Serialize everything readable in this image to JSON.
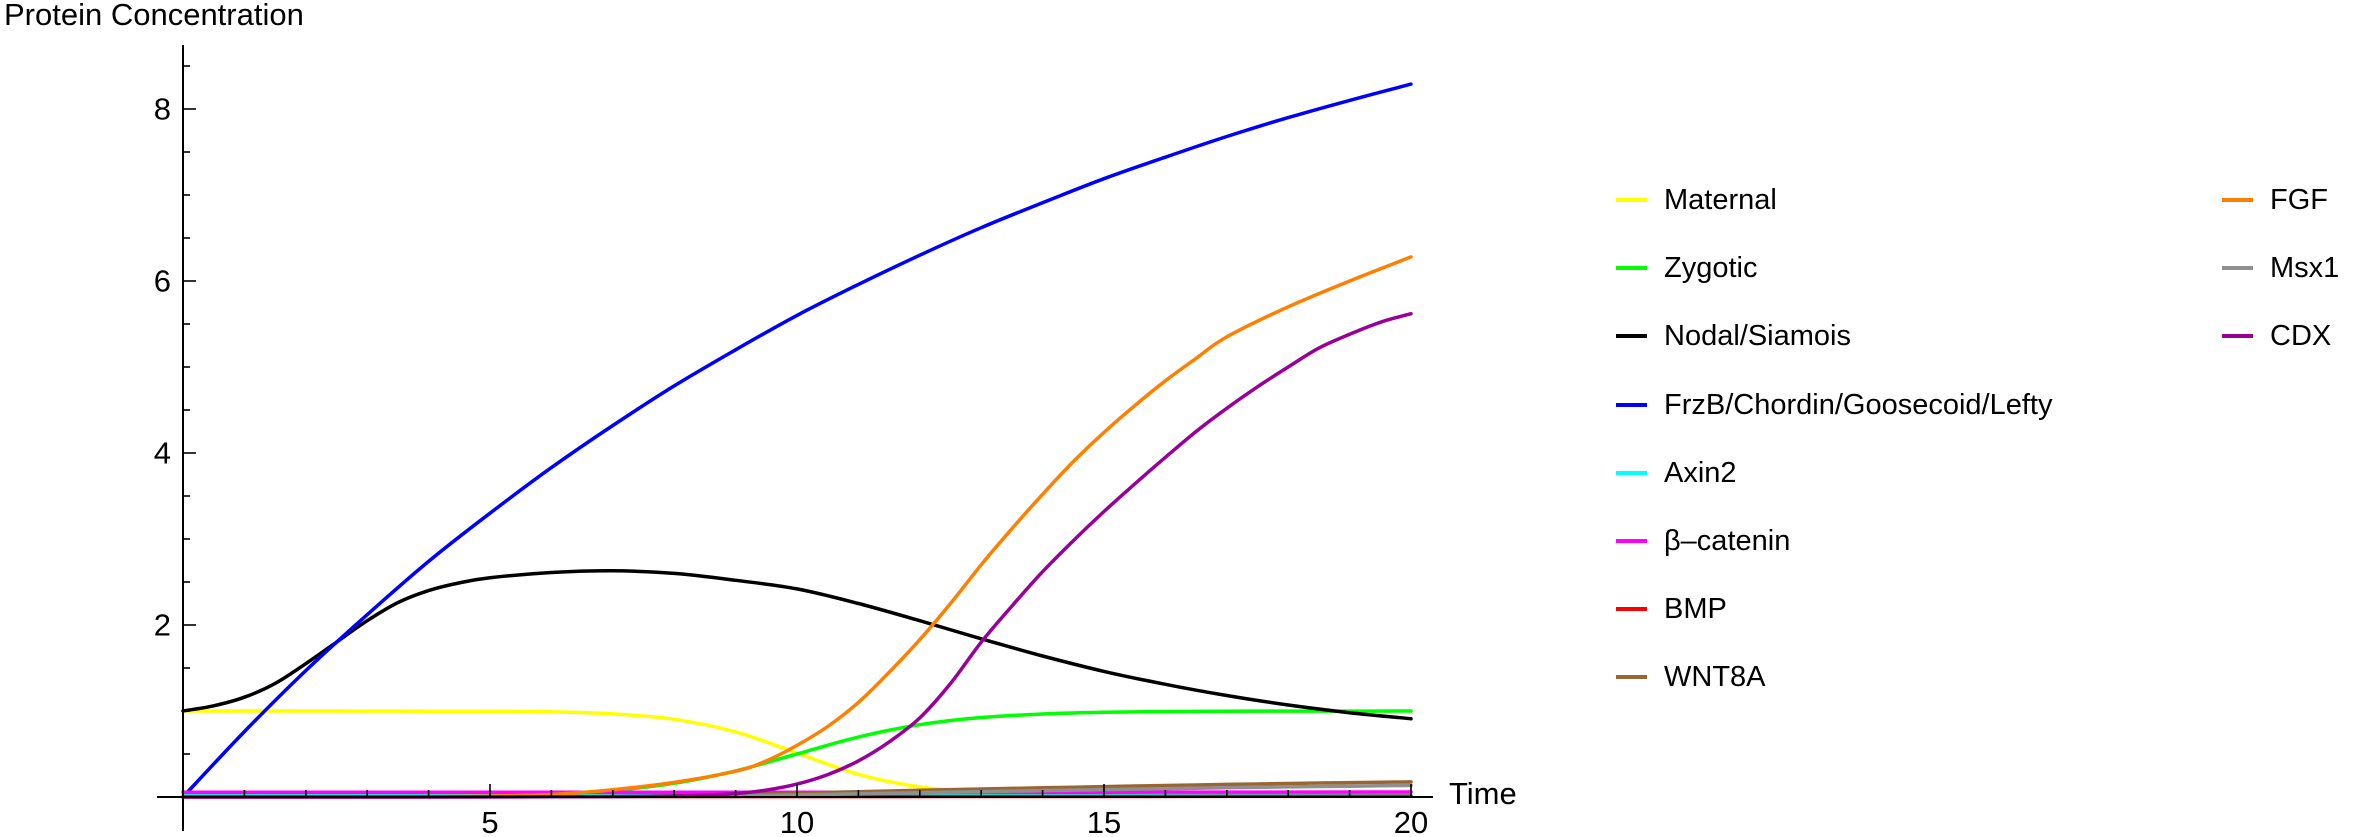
{
  "chart_data": {
    "type": "line",
    "title": "Protein Concentration",
    "xlabel": "Time",
    "ylabel": "Protein Concentration",
    "xlim": [
      0,
      20.35
    ],
    "ylim": [
      0,
      8.8
    ],
    "grid": false,
    "axis_color": "#000000",
    "x_ticks": {
      "major": [
        5,
        10,
        15,
        20
      ],
      "minor_step": 1,
      "labels": [
        "5",
        "10",
        "15",
        "20"
      ]
    },
    "y_ticks": {
      "major": [
        2,
        4,
        6,
        8
      ],
      "minor_step": 0.5,
      "labels": [
        "2",
        "4",
        "6",
        "8"
      ]
    },
    "legend_position": "right",
    "series": [
      {
        "id": "maternal",
        "name": "Maternal",
        "color": "#FFFF00",
        "legend_column": 1,
        "points": [
          [
            0,
            1.0
          ],
          [
            1,
            1.0
          ],
          [
            2,
            1.0
          ],
          [
            3,
            0.999
          ],
          [
            4,
            0.998
          ],
          [
            5,
            0.996
          ],
          [
            6,
            0.99
          ],
          [
            7,
            0.966
          ],
          [
            8,
            0.904
          ],
          [
            9,
            0.757
          ],
          [
            10,
            0.51
          ],
          [
            11,
            0.263
          ],
          [
            12,
            0.116
          ],
          [
            13,
            0.054
          ],
          [
            14,
            0.032
          ],
          [
            15,
            0.024
          ],
          [
            16,
            0.022
          ],
          [
            17,
            0.021
          ],
          [
            18,
            0.021
          ],
          [
            19,
            0.02
          ],
          [
            20,
            0.02
          ]
        ]
      },
      {
        "id": "zygotic",
        "name": "Zygotic",
        "color": "#00FF00",
        "legend_column": 1,
        "points": [
          [
            0,
            0.001
          ],
          [
            2,
            0.002
          ],
          [
            4,
            0.007
          ],
          [
            5,
            0.015
          ],
          [
            6,
            0.035
          ],
          [
            7,
            0.076
          ],
          [
            8,
            0.159
          ],
          [
            9,
            0.303
          ],
          [
            10,
            0.5
          ],
          [
            11,
            0.697
          ],
          [
            12,
            0.841
          ],
          [
            13,
            0.924
          ],
          [
            14,
            0.965
          ],
          [
            15,
            0.985
          ],
          [
            16,
            0.993
          ],
          [
            17,
            0.997
          ],
          [
            18,
            0.999
          ],
          [
            19,
            0.999
          ],
          [
            20,
            1.0
          ]
        ]
      },
      {
        "id": "nodal-siamois",
        "name": "Nodal/Siamois",
        "color": "#000000",
        "legend_column": 1,
        "points": [
          [
            0,
            1.0
          ],
          [
            0.5,
            1.06
          ],
          [
            1,
            1.16
          ],
          [
            1.5,
            1.32
          ],
          [
            2,
            1.55
          ],
          [
            2.5,
            1.8
          ],
          [
            3,
            2.05
          ],
          [
            3.5,
            2.26
          ],
          [
            4,
            2.4
          ],
          [
            4.5,
            2.49
          ],
          [
            5,
            2.55
          ],
          [
            6,
            2.61
          ],
          [
            7,
            2.63
          ],
          [
            8,
            2.6
          ],
          [
            9,
            2.52
          ],
          [
            10,
            2.42
          ],
          [
            11,
            2.25
          ],
          [
            12,
            2.05
          ],
          [
            13,
            1.84
          ],
          [
            14,
            1.64
          ],
          [
            15,
            1.46
          ],
          [
            16,
            1.31
          ],
          [
            17,
            1.18
          ],
          [
            18,
            1.07
          ],
          [
            19,
            0.98
          ],
          [
            20,
            0.91
          ]
        ]
      },
      {
        "id": "frzb-chordin-goosecoid-lefty",
        "name": "FrzB/Chordin/Goosecoid/Lefty",
        "color": "#0000FF",
        "legend_column": 1,
        "points": [
          [
            0,
            0
          ],
          [
            1,
            0.76
          ],
          [
            2,
            1.47
          ],
          [
            3,
            2.12
          ],
          [
            4,
            2.74
          ],
          [
            5,
            3.3
          ],
          [
            6,
            3.83
          ],
          [
            7,
            4.32
          ],
          [
            8,
            4.78
          ],
          [
            9,
            5.2
          ],
          [
            10,
            5.6
          ],
          [
            11,
            5.96
          ],
          [
            12,
            6.3
          ],
          [
            13,
            6.62
          ],
          [
            14,
            6.91
          ],
          [
            15,
            7.19
          ],
          [
            16,
            7.44
          ],
          [
            17,
            7.68
          ],
          [
            18,
            7.9
          ],
          [
            19,
            8.1
          ],
          [
            20,
            8.29
          ]
        ]
      },
      {
        "id": "axin2",
        "name": "Axin2",
        "color": "#00FFFF",
        "legend_column": 1,
        "points": [
          [
            0,
            0.015
          ],
          [
            5,
            0.015
          ],
          [
            10,
            0.017
          ],
          [
            15,
            0.019
          ],
          [
            20,
            0.022
          ]
        ]
      },
      {
        "id": "beta-catenin",
        "name": "β–catenin",
        "color": "#FF00FF",
        "legend_column": 1,
        "points": [
          [
            0,
            0.055
          ],
          [
            5,
            0.055
          ],
          [
            10,
            0.055
          ],
          [
            15,
            0.056
          ],
          [
            20,
            0.058
          ]
        ]
      },
      {
        "id": "bmp",
        "name": "BMP",
        "color": "#FF0000",
        "legend_column": 1,
        "points": [
          [
            0,
            0.005
          ],
          [
            5,
            0.005
          ],
          [
            10,
            0.005
          ],
          [
            15,
            0.006
          ],
          [
            20,
            0.008
          ]
        ]
      },
      {
        "id": "wnt8a",
        "name": "WNT8A",
        "color": "#996633",
        "legend_column": 1,
        "points": [
          [
            0,
            0
          ],
          [
            2,
            0
          ],
          [
            4,
            0.001
          ],
          [
            6,
            0.003
          ],
          [
            7,
            0.006
          ],
          [
            8,
            0.013
          ],
          [
            9,
            0.026
          ],
          [
            10,
            0.045
          ],
          [
            11,
            0.062
          ],
          [
            12,
            0.078
          ],
          [
            13,
            0.093
          ],
          [
            14,
            0.107
          ],
          [
            15,
            0.121
          ],
          [
            16,
            0.134
          ],
          [
            17,
            0.146
          ],
          [
            18,
            0.157
          ],
          [
            19,
            0.167
          ],
          [
            20,
            0.176
          ]
        ]
      },
      {
        "id": "fgf",
        "name": "FGF",
        "color": "#FF8000",
        "legend_column": 2,
        "points": [
          [
            0,
            0
          ],
          [
            2,
            0.001
          ],
          [
            3,
            0.002
          ],
          [
            4,
            0.005
          ],
          [
            5,
            0.012
          ],
          [
            6,
            0.03
          ],
          [
            7,
            0.085
          ],
          [
            8,
            0.17
          ],
          [
            9,
            0.3
          ],
          [
            9.5,
            0.42
          ],
          [
            10,
            0.6
          ],
          [
            10.5,
            0.82
          ],
          [
            11,
            1.1
          ],
          [
            11.5,
            1.45
          ],
          [
            12,
            1.83
          ],
          [
            12.5,
            2.25
          ],
          [
            13,
            2.7
          ],
          [
            13.5,
            3.12
          ],
          [
            14,
            3.52
          ],
          [
            14.5,
            3.9
          ],
          [
            15,
            4.24
          ],
          [
            15.5,
            4.55
          ],
          [
            16,
            4.84
          ],
          [
            16.5,
            5.1
          ],
          [
            17,
            5.35
          ],
          [
            18,
            5.7
          ],
          [
            19,
            6.0
          ],
          [
            20,
            6.28
          ]
        ]
      },
      {
        "id": "msx1",
        "name": "Msx1",
        "color": "#8F8F8F",
        "legend_column": 2,
        "points": [
          [
            0,
            0
          ],
          [
            4,
            0
          ],
          [
            6,
            0.002
          ],
          [
            8,
            0.008
          ],
          [
            9,
            0.015
          ],
          [
            10,
            0.025
          ],
          [
            11,
            0.037
          ],
          [
            12,
            0.05
          ],
          [
            13,
            0.062
          ],
          [
            14,
            0.074
          ],
          [
            15,
            0.086
          ],
          [
            16,
            0.097
          ],
          [
            17,
            0.107
          ],
          [
            18,
            0.117
          ],
          [
            19,
            0.126
          ],
          [
            20,
            0.135
          ]
        ]
      },
      {
        "id": "cdx",
        "name": "CDX",
        "color": "#990099",
        "legend_column": 2,
        "points": [
          [
            0,
            0
          ],
          [
            4,
            0
          ],
          [
            6,
            0.002
          ],
          [
            7,
            0.005
          ],
          [
            8,
            0.012
          ],
          [
            8.5,
            0.022
          ],
          [
            9,
            0.04
          ],
          [
            9.5,
            0.08
          ],
          [
            10,
            0.15
          ],
          [
            10.5,
            0.26
          ],
          [
            11,
            0.42
          ],
          [
            11.5,
            0.64
          ],
          [
            12,
            0.92
          ],
          [
            12.5,
            1.32
          ],
          [
            13,
            1.8
          ],
          [
            13.5,
            2.22
          ],
          [
            14,
            2.62
          ],
          [
            14.5,
            2.98
          ],
          [
            15,
            3.32
          ],
          [
            15.5,
            3.64
          ],
          [
            16,
            3.95
          ],
          [
            16.5,
            4.25
          ],
          [
            17,
            4.52
          ],
          [
            17.5,
            4.77
          ],
          [
            18,
            5.0
          ],
          [
            18.5,
            5.22
          ],
          [
            19,
            5.38
          ],
          [
            19.5,
            5.52
          ],
          [
            20,
            5.62
          ]
        ]
      }
    ]
  }
}
